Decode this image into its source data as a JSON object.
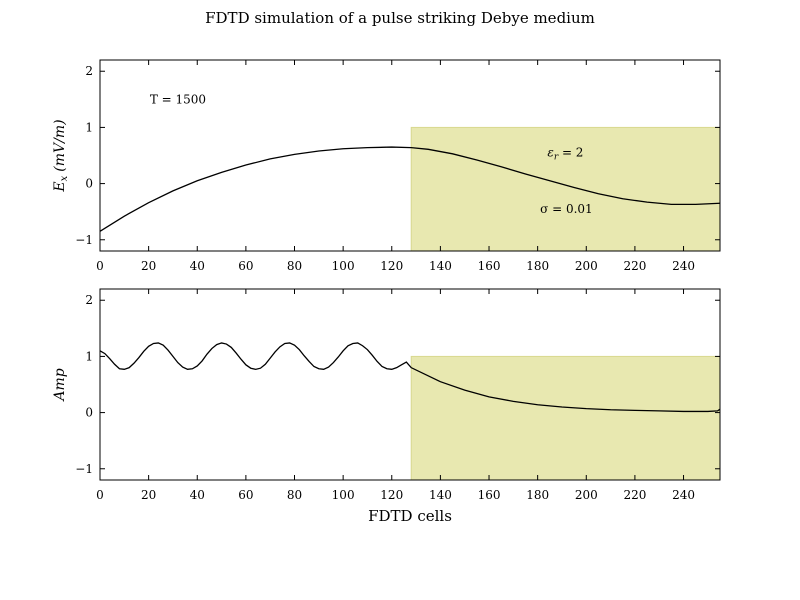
{
  "title": "FDTD simulation of a pulse striking Debye medium",
  "chart_data": [
    {
      "type": "line",
      "ylabel": "E_x (mV/m)",
      "ylabel_main": "E",
      "ylabel_sub": "x",
      "ylabel_rest": "(mV/m)",
      "xlim": [
        0,
        255
      ],
      "ylim": [
        -1.2,
        2.2
      ],
      "xticks": [
        0,
        20,
        40,
        60,
        80,
        100,
        120,
        140,
        160,
        180,
        200,
        220,
        240
      ],
      "yticks": [
        -1,
        0,
        1,
        2
      ],
      "ytick_labels": [
        "−1",
        "0",
        "1",
        "2"
      ],
      "medium_region": {
        "x0": 128,
        "x1": 255,
        "y0": -1.2,
        "y1": 1.0,
        "color": "#e8e8b0"
      },
      "annotations": {
        "time": "T = 1500",
        "eps_sym": "ε",
        "eps_sub": "r",
        "eps_val": " = 2",
        "sigma": "σ = 0.01"
      },
      "series": [
        {
          "color": "#000000",
          "x": [
            0,
            10,
            20,
            30,
            40,
            50,
            60,
            70,
            80,
            90,
            100,
            110,
            120,
            128,
            135,
            145,
            155,
            165,
            175,
            185,
            195,
            205,
            215,
            225,
            235,
            245,
            255
          ],
          "y": [
            -0.85,
            -0.58,
            -0.34,
            -0.13,
            0.05,
            0.2,
            0.33,
            0.44,
            0.52,
            0.58,
            0.62,
            0.64,
            0.65,
            0.64,
            0.61,
            0.53,
            0.42,
            0.3,
            0.17,
            0.05,
            -0.07,
            -0.18,
            -0.27,
            -0.33,
            -0.37,
            -0.37,
            -0.35
          ]
        }
      ]
    },
    {
      "type": "line",
      "xlabel": "FDTD cells",
      "ylabel": "Amp",
      "xlim": [
        0,
        255
      ],
      "ylim": [
        -1.2,
        2.2
      ],
      "xticks": [
        0,
        20,
        40,
        60,
        80,
        100,
        120,
        140,
        160,
        180,
        200,
        220,
        240
      ],
      "yticks": [
        -1,
        0,
        1,
        2
      ],
      "ytick_labels": [
        "−1",
        "0",
        "1",
        "2"
      ],
      "medium_region": {
        "x0": 128,
        "x1": 255,
        "y0": -1.2,
        "y1": 1.0,
        "color": "#e8e8b0"
      },
      "series": [
        {
          "color": "#000000",
          "x": [
            0,
            2,
            4,
            6,
            8,
            10,
            12,
            14,
            16,
            18,
            20,
            22,
            24,
            26,
            28,
            30,
            32,
            34,
            36,
            38,
            40,
            42,
            44,
            46,
            48,
            50,
            52,
            54,
            56,
            58,
            60,
            62,
            64,
            66,
            68,
            70,
            72,
            74,
            76,
            78,
            80,
            82,
            84,
            86,
            88,
            90,
            92,
            94,
            96,
            98,
            100,
            102,
            104,
            106,
            108,
            110,
            112,
            114,
            116,
            118,
            120,
            122,
            124,
            126,
            128,
            140,
            150,
            160,
            170,
            180,
            190,
            200,
            210,
            220,
            230,
            240,
            250,
            254,
            255
          ],
          "y": [
            1.1,
            1.05,
            0.96,
            0.86,
            0.78,
            0.77,
            0.8,
            0.88,
            0.98,
            1.09,
            1.18,
            1.23,
            1.24,
            1.2,
            1.11,
            1.0,
            0.89,
            0.81,
            0.77,
            0.78,
            0.83,
            0.92,
            1.04,
            1.14,
            1.21,
            1.24,
            1.22,
            1.16,
            1.06,
            0.95,
            0.85,
            0.79,
            0.77,
            0.79,
            0.86,
            0.97,
            1.08,
            1.17,
            1.23,
            1.24,
            1.2,
            1.12,
            1.01,
            0.91,
            0.82,
            0.78,
            0.77,
            0.81,
            0.89,
            0.99,
            1.1,
            1.19,
            1.23,
            1.24,
            1.19,
            1.12,
            1.02,
            0.91,
            0.82,
            0.78,
            0.77,
            0.8,
            0.85,
            0.9,
            0.8,
            0.55,
            0.4,
            0.28,
            0.2,
            0.14,
            0.1,
            0.07,
            0.05,
            0.04,
            0.03,
            0.02,
            0.02,
            0.03,
            0.06
          ]
        }
      ]
    }
  ]
}
